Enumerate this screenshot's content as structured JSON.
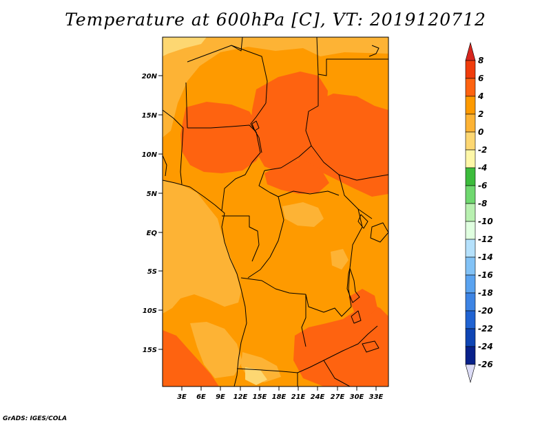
{
  "title": "Temperature at 600hPa [C], VT: 2019120712",
  "footer": "GrADS: IGES/COLA",
  "map": {
    "lat_labels": [
      "20N",
      "15N",
      "10N",
      "5N",
      "EQ",
      "5S",
      "10S",
      "15S"
    ],
    "lon_labels": [
      "3E",
      "6E",
      "9E",
      "12E",
      "15E",
      "18E",
      "21E",
      "24E",
      "27E",
      "30E",
      "33E"
    ]
  },
  "colorbar": {
    "labels": [
      "8",
      "6",
      "4",
      "2",
      "0",
      "-2",
      "-4",
      "-6",
      "-8",
      "-10",
      "-12",
      "-14",
      "-16",
      "-18",
      "-20",
      "-22",
      "-24",
      "-26"
    ],
    "colors": [
      "#d7261e",
      "#f03c0c",
      "#fe6310",
      "#fe9a00",
      "#fdb335",
      "#fdd772",
      "#fef7a8",
      "#3cbc3c",
      "#6fd86f",
      "#b8f0b0",
      "#e0ffe0",
      "#b5e1fc",
      "#82c2f6",
      "#5aa3f0",
      "#3d84e4",
      "#2063d2",
      "#0f45b4",
      "#08218a",
      "#dcdcf6"
    ]
  }
}
